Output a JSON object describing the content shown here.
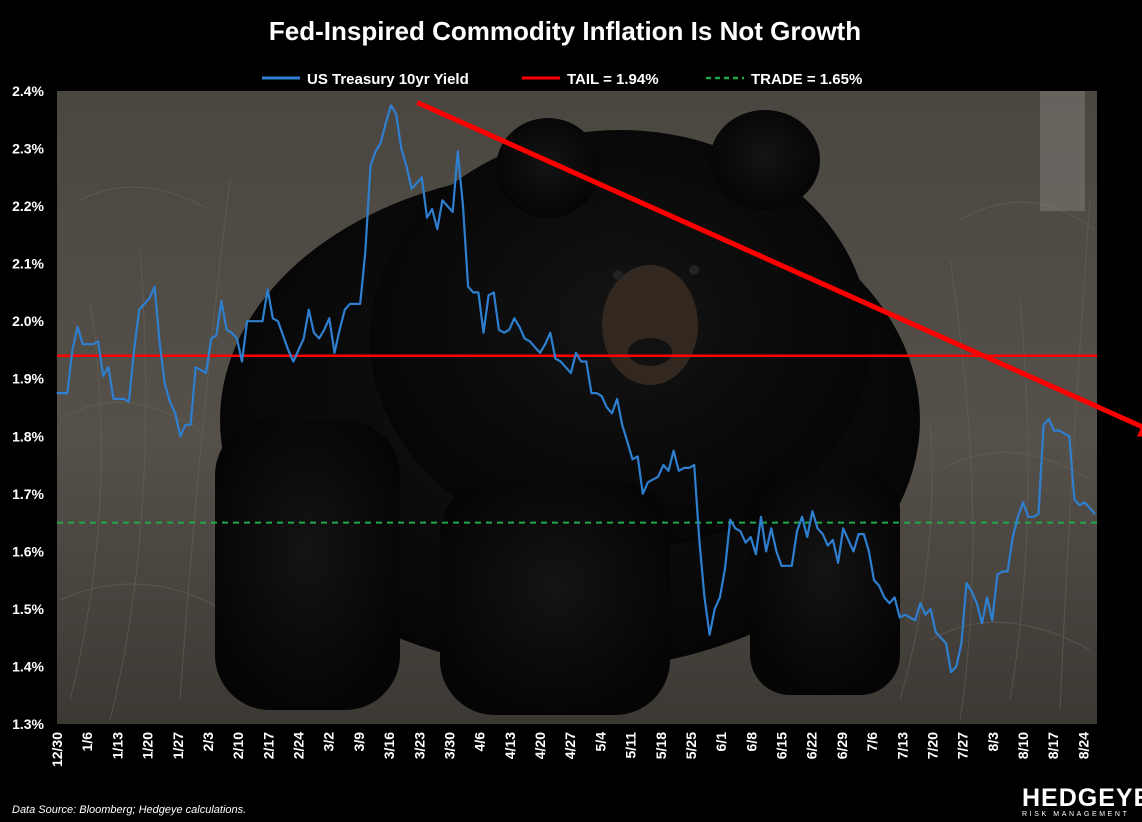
{
  "chart_data": {
    "type": "line",
    "title": "Fed-Inspired Commodity Inflation Is Not Growth",
    "ylim": [
      1.3,
      2.4
    ],
    "y_ticks": [
      "2.4%",
      "2.3%",
      "2.2%",
      "2.1%",
      "2.0%",
      "1.9%",
      "1.8%",
      "1.7%",
      "1.6%",
      "1.5%",
      "1.4%",
      "1.3%"
    ],
    "x_ticks": [
      "12/30",
      "1/6",
      "1/13",
      "1/20",
      "1/27",
      "2/3",
      "2/10",
      "2/17",
      "2/24",
      "3/2",
      "3/9",
      "3/16",
      "3/23",
      "3/30",
      "4/6",
      "4/13",
      "4/20",
      "4/27",
      "5/4",
      "5/11",
      "5/18",
      "5/25",
      "6/1",
      "6/8",
      "6/15",
      "6/22",
      "6/29",
      "7/6",
      "7/13",
      "7/20",
      "7/27",
      "8/3",
      "8/10",
      "8/17",
      "8/24"
    ],
    "series": [
      {
        "name": "US Treasury 10yr Yield",
        "color": "#2f7fd0",
        "values": [
          1.875,
          1.875,
          1.875,
          1.95,
          1.99,
          1.96,
          1.96,
          1.96,
          1.965,
          1.905,
          1.92,
          1.865,
          1.865,
          1.865,
          1.86,
          1.95,
          2.02,
          2.03,
          2.04,
          2.06,
          1.96,
          1.89,
          1.86,
          1.84,
          1.8,
          1.82,
          1.82,
          1.92,
          1.915,
          1.91,
          1.97,
          1.975,
          2.035,
          1.985,
          1.98,
          1.97,
          1.93,
          2.0,
          2.0,
          2.0,
          2.0,
          2.055,
          2.005,
          2.0,
          1.975,
          1.95,
          1.93,
          1.95,
          1.97,
          2.02,
          1.98,
          1.97,
          1.985,
          2.005,
          1.945,
          1.985,
          2.02,
          2.03,
          2.03,
          2.03,
          2.12,
          2.27,
          2.295,
          2.31,
          2.345,
          2.375,
          2.36,
          2.3,
          2.27,
          2.23,
          2.24,
          2.25,
          2.18,
          2.195,
          2.16,
          2.21,
          2.2,
          2.19,
          2.295,
          2.2,
          2.06,
          2.05,
          2.05,
          1.98,
          2.045,
          2.05,
          1.985,
          1.98,
          1.985,
          2.005,
          1.99,
          1.97,
          1.965,
          1.955,
          1.945,
          1.96,
          1.98,
          1.935,
          1.93,
          1.92,
          1.91,
          1.945,
          1.93,
          1.93,
          1.875,
          1.875,
          1.87,
          1.85,
          1.84,
          1.865,
          1.82,
          1.79,
          1.76,
          1.765,
          1.7,
          1.72,
          1.725,
          1.73,
          1.75,
          1.74,
          1.775,
          1.74,
          1.745,
          1.745,
          1.75,
          1.62,
          1.52,
          1.455,
          1.5,
          1.52,
          1.57,
          1.655,
          1.64,
          1.635,
          1.615,
          1.625,
          1.595,
          1.66,
          1.6,
          1.64,
          1.6,
          1.575,
          1.575,
          1.575,
          1.635,
          1.66,
          1.625,
          1.67,
          1.64,
          1.63,
          1.61,
          1.62,
          1.58,
          1.64,
          1.62,
          1.6,
          1.63,
          1.63,
          1.6,
          1.55,
          1.54,
          1.52,
          1.51,
          1.52,
          1.485,
          1.49,
          1.485,
          1.48,
          1.51,
          1.49,
          1.5,
          1.46,
          1.45,
          1.44,
          1.39,
          1.4,
          1.44,
          1.545,
          1.53,
          1.51,
          1.475,
          1.52,
          1.48,
          1.56,
          1.565,
          1.565,
          1.625,
          1.66,
          1.685,
          1.66,
          1.66,
          1.665,
          1.82,
          1.83,
          1.81,
          1.81,
          1.805,
          1.8,
          1.69,
          1.68,
          1.685,
          1.675,
          1.665
        ]
      },
      {
        "name": "TAIL = 1.94%",
        "color": "#ff0000",
        "value": 1.94
      },
      {
        "name": "TRADE = 1.65%",
        "color": "#22a84a",
        "value": 1.65
      }
    ],
    "annotations": [
      {
        "type": "arrow",
        "color": "#ff0000",
        "from": {
          "x": "3/23",
          "y": 2.38
        },
        "to": {
          "x": "8/24",
          "y": 1.8
        }
      }
    ],
    "grid": false,
    "legend": "top"
  },
  "footer": {
    "source": "Data Source:  Bloomberg; Hedgeye calculations.",
    "logo_main": "HEDGEYE",
    "logo_sub": "RISK MANAGEMENT"
  }
}
